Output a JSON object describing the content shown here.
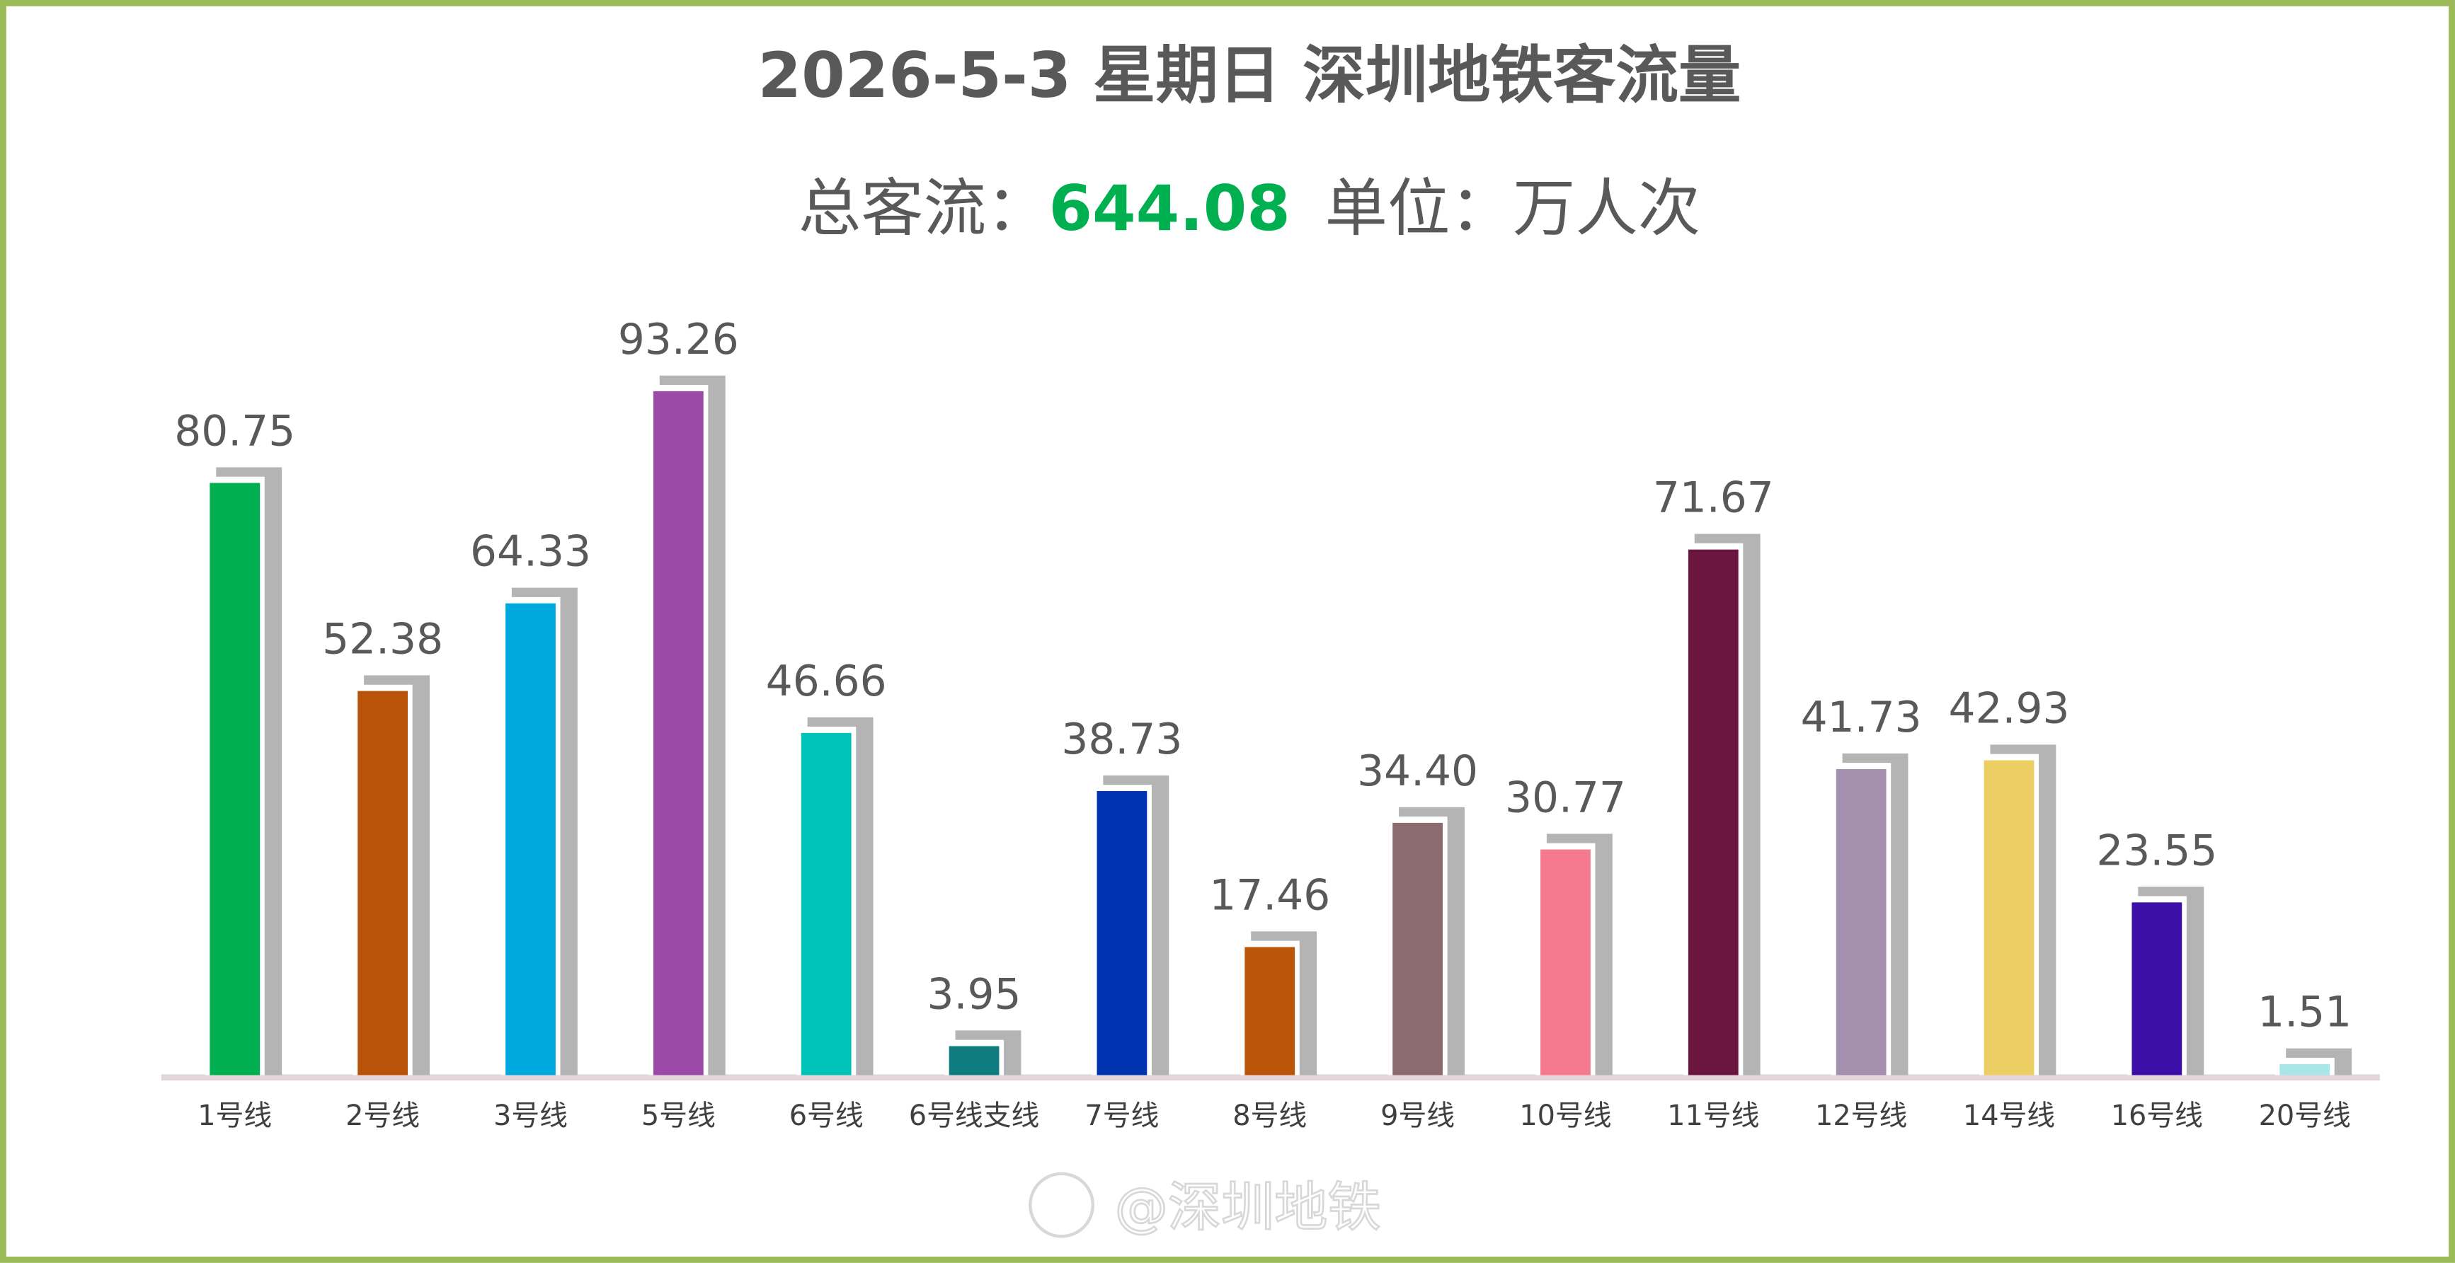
{
  "chart_data": {
    "type": "bar",
    "title": "2026-5-3 星期日  深圳地铁客流量",
    "subtitle_prefix": "总客流：",
    "total": "644.08",
    "subtitle_suffix": "单位：万人次",
    "watermark": "@深圳地铁",
    "categories": [
      "1号线",
      "2号线",
      "3号线",
      "5号线",
      "6号线",
      "6号线支线",
      "7号线",
      "8号线",
      "9号线",
      "10号线",
      "11号线",
      "12号线",
      "14号线",
      "16号线",
      "20号线"
    ],
    "values": [
      80.75,
      52.38,
      64.33,
      93.26,
      46.66,
      3.95,
      38.73,
      17.46,
      34.4,
      30.77,
      71.67,
      41.73,
      42.93,
      23.55,
      1.51
    ],
    "value_labels": [
      "80.75",
      "52.38",
      "64.33",
      "93.26",
      "46.66",
      "3.95",
      "38.73",
      "17.46",
      "34.40",
      "30.77",
      "71.67",
      "41.73",
      "42.93",
      "23.55",
      "1.51"
    ],
    "colors": [
      "#00b050",
      "#b85309",
      "#00a8e0",
      "#9b4aa8",
      "#00c4b8",
      "#0f7d80",
      "#0033b0",
      "#bb5508",
      "#8c6a70",
      "#f5798f",
      "#6a163f",
      "#a690b0",
      "#ecce62",
      "#3b0fa8",
      "#a8e6e8"
    ]
  }
}
